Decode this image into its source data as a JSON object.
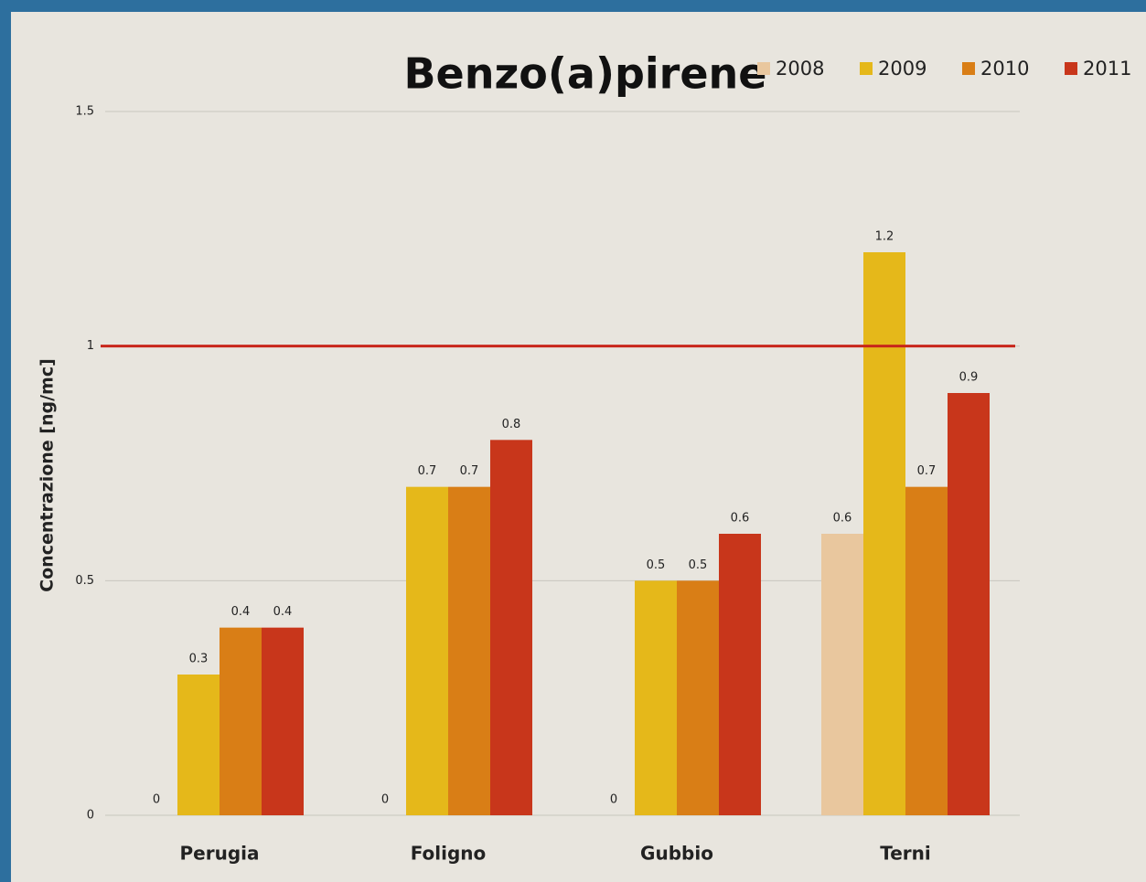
{
  "chart_data": {
    "type": "bar",
    "title": "Benzo(a)pirene",
    "y_label": "Concentrazione [ng/mc]",
    "categories": [
      "Perugia",
      "Foligno",
      "Gubbio",
      "Terni"
    ],
    "series": [
      {
        "name": "2008",
        "color": "#e9c79e",
        "values": [
          0,
          0,
          0,
          0.6
        ]
      },
      {
        "name": "2009",
        "color": "#e5b81a",
        "values": [
          0.3,
          0.7,
          0.5,
          1.2
        ]
      },
      {
        "name": "2010",
        "color": "#d97e16",
        "values": [
          0.4,
          0.7,
          0.5,
          0.7
        ]
      },
      {
        "name": "2011",
        "color": "#c8361b",
        "values": [
          0.4,
          0.8,
          0.6,
          0.9
        ]
      }
    ],
    "threshold": 1,
    "threshold_color": "#c8261b",
    "ylim": [
      0,
      1.5
    ],
    "yticks": [
      0,
      0.5,
      1,
      1.5
    ],
    "grid": true
  }
}
